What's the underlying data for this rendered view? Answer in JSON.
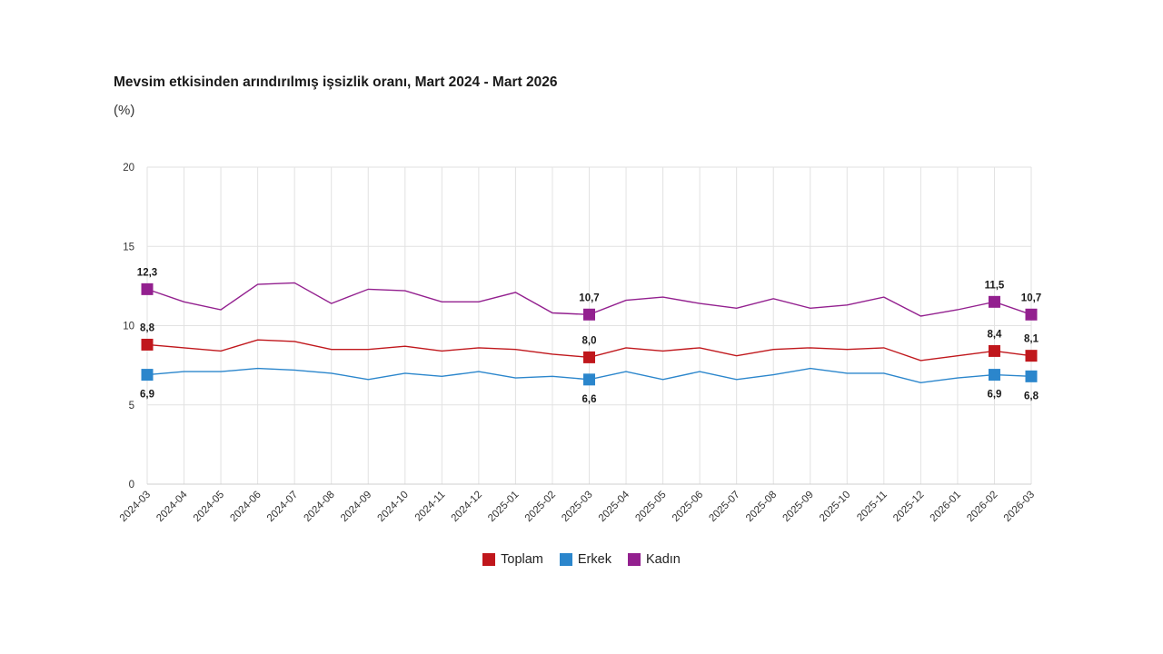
{
  "chart_data": {
    "type": "line",
    "title": "Mevsim etkisinden arındırılmış işsizlik oranı, Mart 2024 - Mart 2026",
    "subtitle": "(%)",
    "ylim": [
      0,
      20
    ],
    "yticks": [
      0,
      5,
      10,
      15,
      20
    ],
    "ytick_labels": [
      "0",
      "5",
      "10",
      "15",
      "20"
    ],
    "categories": [
      "2024-03",
      "2024-04",
      "2024-05",
      "2024-06",
      "2024-07",
      "2024-08",
      "2024-09",
      "2024-10",
      "2024-11",
      "2024-12",
      "2025-01",
      "2025-02",
      "2025-03",
      "2025-04",
      "2025-05",
      "2025-06",
      "2025-07",
      "2025-08",
      "2025-09",
      "2025-10",
      "2025-11",
      "2025-12",
      "2026-01",
      "2026-02",
      "2026-03"
    ],
    "series": [
      {
        "name": "Toplam",
        "color": "#c0171c",
        "values": [
          8.8,
          8.6,
          8.4,
          9.1,
          9.0,
          8.5,
          8.5,
          8.7,
          8.4,
          8.6,
          8.5,
          8.2,
          8.0,
          8.6,
          8.4,
          8.6,
          8.1,
          8.5,
          8.6,
          8.5,
          8.6,
          7.8,
          8.1,
          8.4,
          8.1
        ]
      },
      {
        "name": "Erkek",
        "color": "#2b86cc",
        "values": [
          6.9,
          7.1,
          7.1,
          7.3,
          7.2,
          7.0,
          6.6,
          7.0,
          6.8,
          7.1,
          6.7,
          6.8,
          6.6,
          7.1,
          6.6,
          7.1,
          6.6,
          6.9,
          7.3,
          7.0,
          7.0,
          6.4,
          6.7,
          6.9,
          6.8
        ]
      },
      {
        "name": "Kadın",
        "color": "#93208f",
        "values": [
          12.3,
          11.5,
          11.0,
          12.6,
          12.7,
          11.4,
          12.3,
          12.2,
          11.5,
          11.5,
          12.1,
          10.8,
          10.7,
          11.6,
          11.8,
          11.4,
          11.1,
          11.7,
          11.1,
          11.3,
          11.8,
          10.6,
          11.0,
          11.5,
          10.7
        ]
      }
    ],
    "highlight_indices": [
      0,
      12,
      23,
      24
    ],
    "data_labels": {
      "Toplam": {
        "0": "8,8",
        "12": "8,0",
        "23": "8,4",
        "24": "8,1"
      },
      "Erkek": {
        "0": "6,9",
        "12": "6,6",
        "23": "6,9",
        "24": "6,8"
      },
      "Kadın": {
        "0": "12,3",
        "12": "10,7",
        "23": "11,5",
        "24": "10,7"
      }
    },
    "legend": {
      "position": "bottom-center",
      "entries": [
        "Toplam",
        "Erkek",
        "Kadın"
      ]
    }
  }
}
